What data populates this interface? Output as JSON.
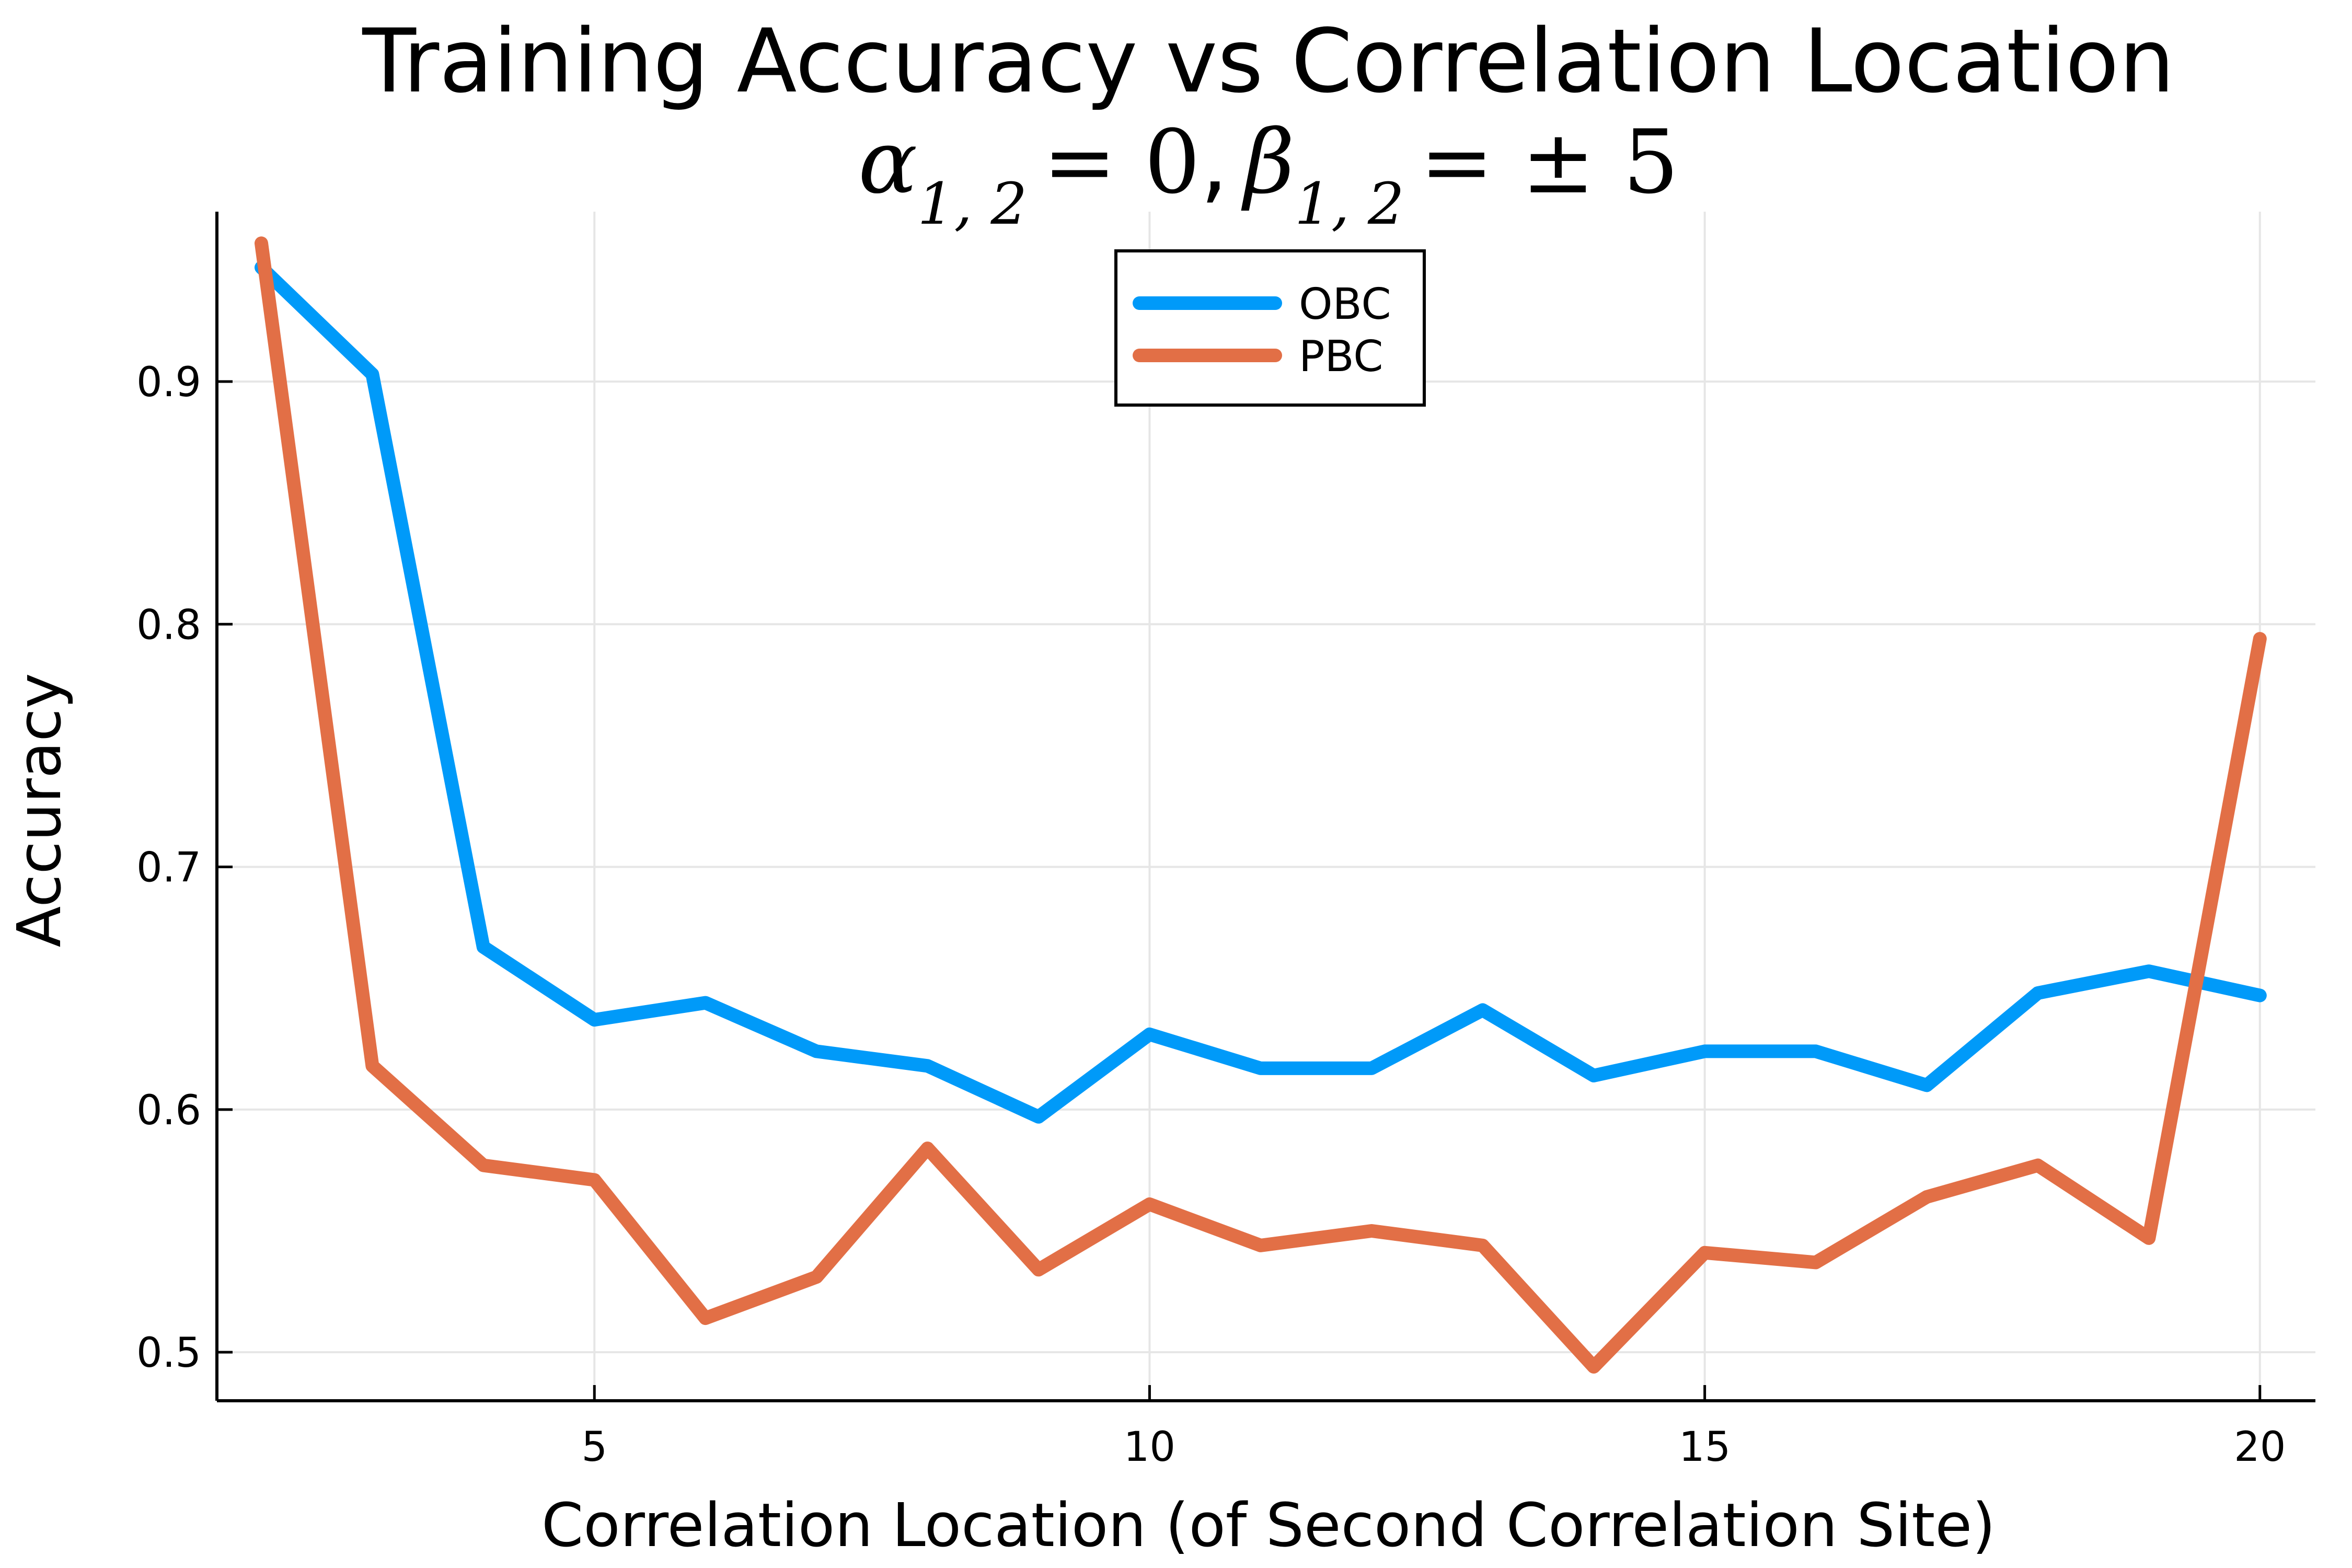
{
  "chart_data": {
    "type": "line",
    "title": "Training Accuracy vs Correlation Location",
    "subtitle": {
      "alpha_symbol": "α",
      "alpha_sub": "1, 2",
      "alpha_rhs": "= 0",
      "separator": ",",
      "beta_symbol": "β",
      "beta_sub": "1, 2",
      "beta_rhs": "= ± 5"
    },
    "xlabel": "Correlation Location (of Second Correlation Site)",
    "ylabel": "Accuracy",
    "xlim": [
      1.6,
      20.5
    ],
    "ylim": [
      0.48,
      0.97
    ],
    "xticks": [
      {
        "value": 5,
        "label": "5"
      },
      {
        "value": 10,
        "label": "10"
      },
      {
        "value": 15,
        "label": "15"
      },
      {
        "value": 20,
        "label": "20"
      }
    ],
    "yticks": [
      {
        "value": 0.5,
        "label": "0.5"
      },
      {
        "value": 0.6,
        "label": "0.6"
      },
      {
        "value": 0.7,
        "label": "0.7"
      },
      {
        "value": 0.8,
        "label": "0.8"
      },
      {
        "value": 0.9,
        "label": "0.9"
      }
    ],
    "grid": true,
    "legend_position": "top-center",
    "x": [
      2,
      3,
      4,
      5,
      6,
      7,
      8,
      9,
      10,
      11,
      12,
      13,
      14,
      15,
      16,
      17,
      18,
      19,
      20
    ],
    "series": [
      {
        "name": "OBC",
        "color": "#009af9",
        "values": [
          0.947,
          0.903,
          0.667,
          0.637,
          0.644,
          0.624,
          0.618,
          0.597,
          0.631,
          0.617,
          0.617,
          0.641,
          0.614,
          0.624,
          0.624,
          0.61,
          0.648,
          0.657,
          0.647
        ]
      },
      {
        "name": "PBC",
        "color": "#e26f46",
        "values": [
          0.957,
          0.618,
          0.577,
          0.571,
          0.514,
          0.531,
          0.584,
          0.534,
          0.561,
          0.544,
          0.55,
          0.544,
          0.494,
          0.541,
          0.537,
          0.564,
          0.577,
          0.547,
          0.794
        ]
      }
    ]
  }
}
